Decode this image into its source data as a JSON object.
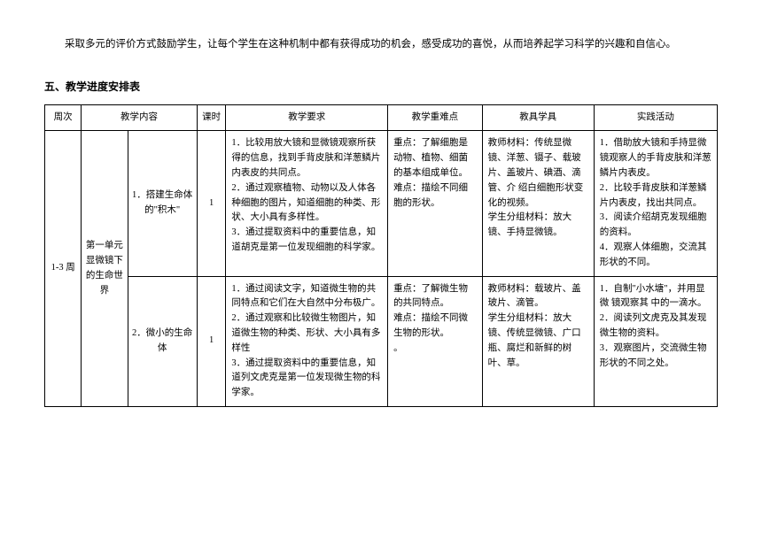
{
  "intro": "采取多元的评价方式鼓励学生，让每个学生在这种机制中都有获得成功的机会，感受成功的喜悦，从而培养起学习科学的兴趣和自信心。",
  "section_title": "五、教学进度安排表",
  "headers": {
    "week": "周次",
    "content": "教学内容",
    "hours": "课时",
    "requirements": "教学要求",
    "difficulties": "教学重难点",
    "tools": "教具学具",
    "activities": "实践活动"
  },
  "rows": [
    {
      "week": "1-3 周",
      "unit": "第一单元　显微镜下的生命世界",
      "lesson": "1．搭建生命体的\"积木\"",
      "hours": "1",
      "requirements": "1．比较用放大镜和显微镜观察所获得的信息，找到手背皮肤和洋葱鳞片 内表皮的共同点。\n2．通过观察植物、动物以及人体各种细胞的图片，知道细胞的种类、形 状、大小具有多样性。\n3．通过提取资料中的重要信息，知道胡克是第一位发现细胞的科学家。",
      "difficulties": "重点：了解细胞是动物、植物、细菌的基本组成单位。\n难点：描绘不同细胞的形状。",
      "tools": "教师材料：传统显微镜、洋葱、镊子、载玻片、盖玻片、碘酒、滴管、介 绍白细胞形状变化的视频。\n学生分组材料：放大镜、手持显微镜。",
      "activities": "1．借助放大镜和手持显微镜观察人的手背皮肤和洋葱鳞片内表皮。\n2．比较手背皮肤和洋葱鳞片内表皮，找出共同点。\n3．阅读介绍胡克发现细胞的资料。\n4．观察人体细胞，交流其形状的不同。"
    },
    {
      "lesson": "2．微小的生命体",
      "hours": "1",
      "requirements": "1．通过阅读文字，知道微生物的共同特点和它们在大自然中分布极广。\n2．通过观察和比较微生物图片，知道微生物的种类、形状、大小具有多样性\n3．通过提取资料中的重要信息，知道列文虎克是第一位发现微生物的科学家。",
      "difficulties": "重点：了解微生物的共同特点。\n难点：描绘不同微生物的形状。\n。",
      "tools": "教师材料：载玻片、盖玻片、滴管。\n学生分组材料：放大镜、传统显微镜、广口瓶、腐烂和新鲜的树叶、草。",
      "activities": "1．自制\"小水塘\"，并用显微 镜观察其 中的一滴水。\n2．阅读列文虎克及其发现微生物的资料。\n3．观察图片，交流微生物形状的不同之处。"
    }
  ]
}
